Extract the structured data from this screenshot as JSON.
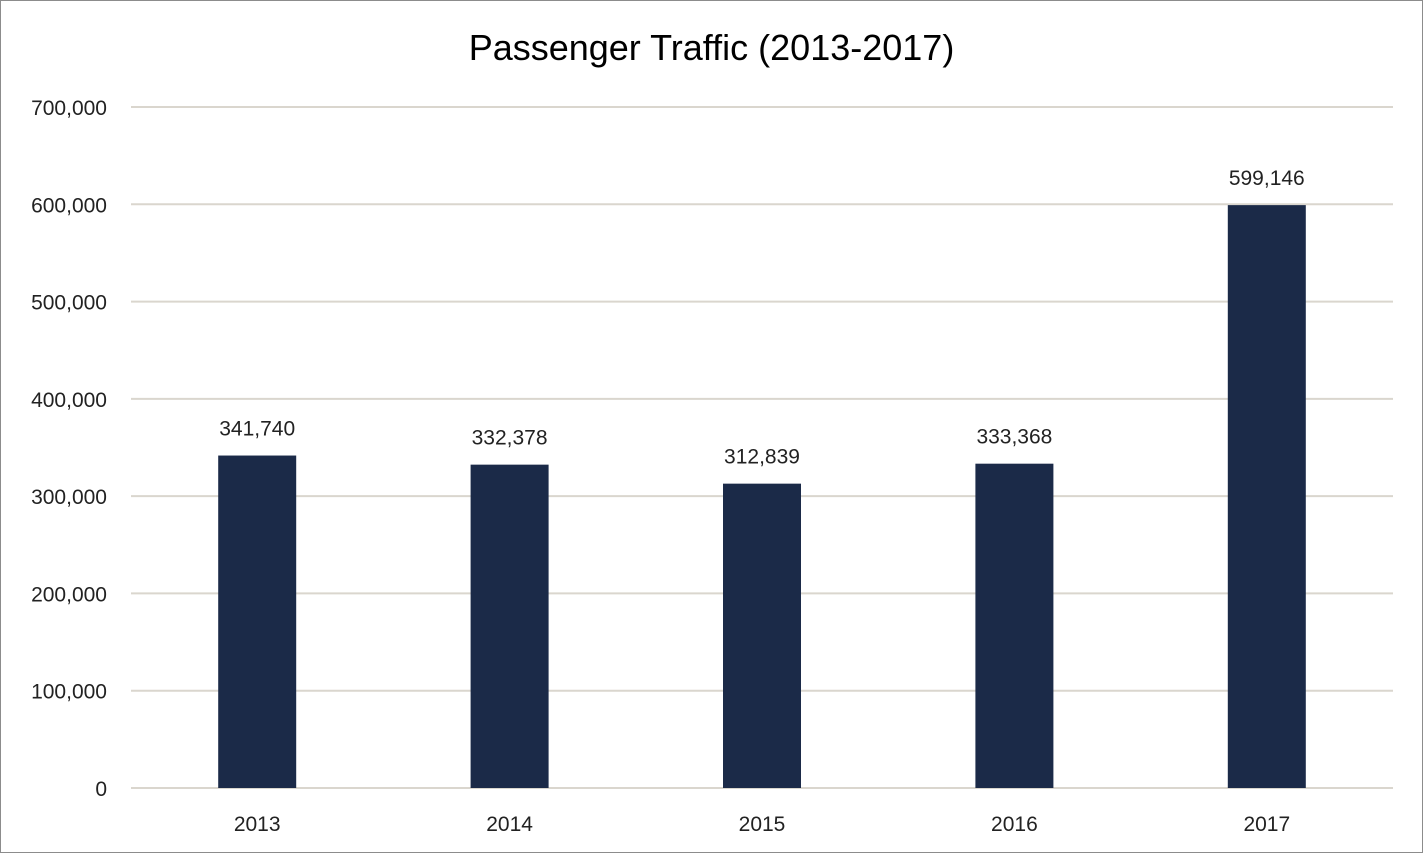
{
  "chart_data": {
    "type": "bar",
    "title": "Passenger Traffic (2013-2017)",
    "xlabel": "",
    "ylabel": "",
    "categories": [
      "2013",
      "2014",
      "2015",
      "2016",
      "2017"
    ],
    "series": [
      {
        "values": [
          341740,
          332378,
          312839,
          333368,
          599146
        ],
        "data_labels": [
          "341,740",
          "332,378",
          "312,839",
          "333,368",
          "599,146"
        ]
      }
    ],
    "ylim": [
      0,
      700000
    ],
    "y_ticks": [
      0,
      100000,
      200000,
      300000,
      400000,
      500000,
      600000,
      700000
    ],
    "y_tick_labels": [
      "0",
      "100,000",
      "200,000",
      "300,000",
      "400,000",
      "500,000",
      "600,000",
      "700,000"
    ],
    "grid": true,
    "legend": "none",
    "colors": {
      "bar": "#1b2a48",
      "grid": "#dad6ce",
      "text": "#222222"
    }
  }
}
